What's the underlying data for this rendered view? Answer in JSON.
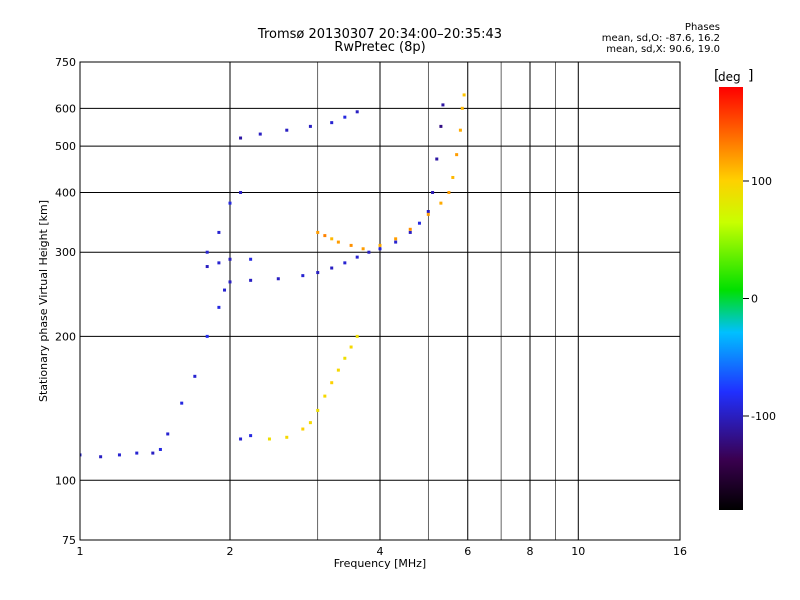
{
  "header": {
    "title_line1": "Tromsø 20130307 20:34:00–20:35:43",
    "title_line2": "RwPretec (8p)",
    "phases_title": "Phases",
    "phases_o": "mean, sd,O: -87.6, 16.2",
    "phases_x": "mean, sd,X:  90.6, 19.0"
  },
  "colorbar": {
    "unit": "deg",
    "tick_labels": [
      "100",
      "0",
      "-100"
    ],
    "tick_values": [
      100,
      0,
      -100
    ],
    "range": [
      -180,
      180
    ]
  },
  "chart_data": {
    "type": "scatter",
    "title": "Tromsø 20130307 20:34:00–20:35:43",
    "subtitle": "RwPretec (8p)",
    "xlabel": "Frequency [MHz]",
    "ylabel": "Stationary phase Virtual Height [km]",
    "x_scale": "log",
    "y_scale": "log",
    "xlim": [
      1,
      16
    ],
    "ylim": [
      75,
      750
    ],
    "x_ticks": [
      1,
      2,
      4,
      6,
      8,
      10,
      16
    ],
    "x_tick_labels": [
      "1",
      "2",
      "4",
      "6",
      "8",
      "10",
      "16"
    ],
    "y_ticks": [
      75,
      100,
      200,
      300,
      400,
      500,
      600,
      750
    ],
    "y_tick_labels": [
      "75",
      "100",
      "200",
      "300",
      "400",
      "500",
      "600",
      "750"
    ],
    "grid": true,
    "color_encoding": "phase [deg], range -180 to 180 (rainbow colorbar)",
    "series": [
      {
        "values": [
          [
            1.0,
            113,
            -95
          ],
          [
            1.1,
            112,
            -100
          ],
          [
            1.2,
            113,
            -95
          ],
          [
            1.3,
            114,
            -95
          ],
          [
            1.4,
            114,
            -100
          ],
          [
            1.45,
            116,
            -90
          ],
          [
            1.5,
            125,
            -95
          ],
          [
            1.6,
            145,
            -90
          ],
          [
            1.7,
            165,
            -95
          ],
          [
            1.8,
            200,
            -85
          ],
          [
            1.9,
            230,
            -90
          ],
          [
            1.95,
            250,
            -95
          ],
          [
            2.0,
            260,
            -100
          ],
          [
            2.2,
            262,
            -100
          ],
          [
            2.5,
            264,
            -100
          ],
          [
            2.8,
            268,
            -95
          ],
          [
            3.0,
            272,
            -100
          ],
          [
            3.2,
            278,
            -100
          ],
          [
            3.4,
            285,
            -95
          ],
          [
            3.6,
            293,
            -95
          ],
          [
            3.8,
            300,
            -100
          ],
          [
            4.0,
            305,
            -95
          ],
          [
            4.3,
            315,
            -95
          ],
          [
            4.6,
            330,
            -100
          ],
          [
            4.8,
            345,
            -90
          ],
          [
            5.0,
            365,
            -100
          ],
          [
            5.1,
            400,
            -105
          ],
          [
            5.2,
            470,
            -110
          ],
          [
            5.3,
            550,
            -120
          ],
          [
            5.35,
            610,
            -110
          ],
          [
            1.8,
            280,
            -100
          ],
          [
            1.9,
            285,
            -95
          ],
          [
            2.0,
            290,
            -100
          ],
          [
            2.2,
            290,
            -90
          ],
          [
            1.8,
            300,
            -95
          ],
          [
            1.9,
            330,
            -95
          ],
          [
            2.0,
            380,
            -90
          ],
          [
            2.1,
            400,
            -100
          ],
          [
            2.1,
            520,
            -110
          ],
          [
            2.3,
            530,
            -100
          ],
          [
            2.6,
            540,
            -100
          ],
          [
            2.9,
            550,
            -100
          ],
          [
            3.2,
            560,
            -95
          ],
          [
            3.4,
            575,
            -90
          ],
          [
            3.6,
            590,
            -100
          ]
        ]
      },
      {
        "values": [
          [
            2.1,
            122,
            -95
          ],
          [
            2.2,
            124,
            -90
          ],
          [
            2.4,
            122,
            90
          ],
          [
            2.6,
            123,
            95
          ],
          [
            2.8,
            128,
            100
          ],
          [
            2.9,
            132,
            95
          ],
          [
            3.0,
            140,
            90
          ],
          [
            3.1,
            150,
            95
          ],
          [
            3.2,
            160,
            100
          ],
          [
            3.3,
            170,
            95
          ],
          [
            3.4,
            180,
            90
          ],
          [
            3.5,
            190,
            95
          ],
          [
            3.6,
            200,
            90
          ],
          [
            3.0,
            330,
            120
          ],
          [
            3.1,
            325,
            130
          ],
          [
            3.2,
            320,
            110
          ],
          [
            3.3,
            315,
            120
          ],
          [
            3.5,
            310,
            125
          ],
          [
            3.7,
            305,
            120
          ],
          [
            4.0,
            310,
            115
          ],
          [
            4.3,
            320,
            120
          ],
          [
            4.6,
            335,
            125
          ],
          [
            5.0,
            360,
            120
          ],
          [
            5.3,
            380,
            115
          ],
          [
            5.5,
            400,
            120
          ],
          [
            5.6,
            430,
            110
          ],
          [
            5.7,
            480,
            120
          ],
          [
            5.8,
            540,
            115
          ],
          [
            5.85,
            600,
            110
          ],
          [
            5.9,
            640,
            105
          ]
        ]
      }
    ]
  }
}
